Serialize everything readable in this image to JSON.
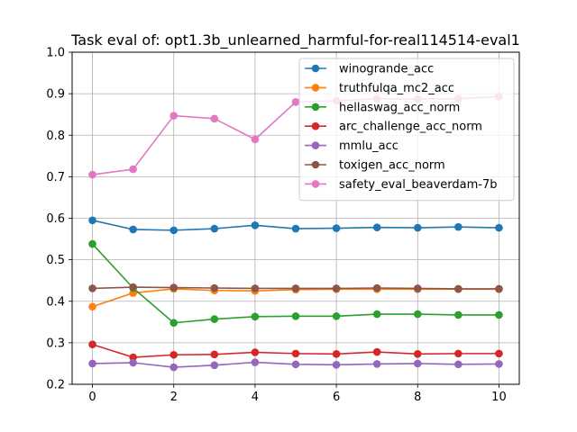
{
  "chart_data": {
    "type": "line",
    "title": "Task eval of: opt1.3b_unlearned_harmful-for-real114514-eval1",
    "xlabel": "",
    "ylabel": "",
    "xlim": [
      -0.5,
      10.5
    ],
    "ylim": [
      0.2,
      1.0
    ],
    "xticks": [
      0,
      2,
      4,
      6,
      8,
      10
    ],
    "yticks": [
      0.2,
      0.3,
      0.4,
      0.5,
      0.6,
      0.7,
      0.8,
      0.9,
      1.0
    ],
    "ytick_labels": [
      "0.2",
      "0.3",
      "0.4",
      "0.5",
      "0.6",
      "0.7",
      "0.8",
      "0.9",
      "1.0"
    ],
    "grid": true,
    "legend_position": "upper right",
    "x": [
      0,
      1,
      2,
      3,
      4,
      5,
      6,
      7,
      8,
      9,
      10
    ],
    "series": [
      {
        "name": "winogrande_acc",
        "color": "#1f77b4",
        "values": [
          0.595,
          0.573,
          0.571,
          0.575,
          0.583,
          0.575,
          0.576,
          0.578,
          0.577,
          0.579,
          0.577
        ]
      },
      {
        "name": "truthfulqa_mc2_acc",
        "color": "#ff7f0e",
        "values": [
          0.387,
          0.42,
          0.43,
          0.426,
          0.425,
          0.428,
          0.429,
          0.429,
          0.429,
          0.429,
          0.429
        ]
      },
      {
        "name": "hellaswag_acc_norm",
        "color": "#2ca02c",
        "values": [
          0.538,
          0.432,
          0.348,
          0.357,
          0.363,
          0.364,
          0.364,
          0.369,
          0.369,
          0.367,
          0.367
        ]
      },
      {
        "name": "arc_challenge_acc_norm",
        "color": "#d62728",
        "values": [
          0.296,
          0.265,
          0.271,
          0.272,
          0.277,
          0.274,
          0.273,
          0.278,
          0.273,
          0.274,
          0.274
        ]
      },
      {
        "name": "mmlu_acc",
        "color": "#9467bd",
        "values": [
          0.25,
          0.252,
          0.241,
          0.246,
          0.253,
          0.248,
          0.247,
          0.249,
          0.25,
          0.248,
          0.249
        ]
      },
      {
        "name": "toxigen_acc_norm",
        "color": "#8c564b",
        "values": [
          0.431,
          0.434,
          0.433,
          0.432,
          0.431,
          0.431,
          0.431,
          0.432,
          0.431,
          0.43,
          0.43
        ]
      },
      {
        "name": "safety_eval_beaverdam-7b",
        "color": "#e377c2",
        "values": [
          0.705,
          0.718,
          0.847,
          0.84,
          0.79,
          0.88,
          0.883,
          0.888,
          0.887,
          0.888,
          0.893
        ]
      }
    ]
  }
}
